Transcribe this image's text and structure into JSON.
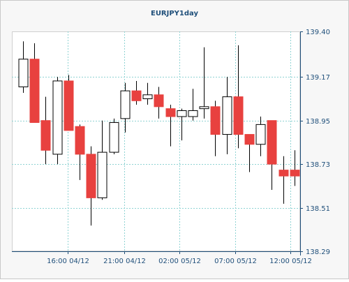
{
  "chart_data": {
    "type": "candlestick",
    "title": "EURJPY1day",
    "ylim": [
      138.29,
      139.4
    ],
    "y_ticks": [
      "139.40",
      "139.17",
      "138.95",
      "138.73",
      "138.51",
      "138.29"
    ],
    "x_ticks": [
      "16:00 04/12",
      "21:00 04/12",
      "02:00 05/12",
      "07:00 05/12",
      "12:00 05/12"
    ],
    "grid": true,
    "colors": {
      "up": "#ffffff",
      "down": "#e8413f",
      "axis": "#1f4f7a",
      "grid": "#8fd3d3",
      "frame": "#c8c8c8",
      "panel": "#f7f7f7"
    },
    "candles": [
      {
        "o": 139.12,
        "h": 139.35,
        "l": 139.09,
        "c": 139.26
      },
      {
        "o": 139.26,
        "h": 139.34,
        "l": 138.94,
        "c": 138.94
      },
      {
        "o": 138.95,
        "h": 139.07,
        "l": 138.73,
        "c": 138.8
      },
      {
        "o": 138.78,
        "h": 139.17,
        "l": 138.73,
        "c": 139.15
      },
      {
        "o": 139.15,
        "h": 139.18,
        "l": 138.9,
        "c": 138.9
      },
      {
        "o": 138.92,
        "h": 138.93,
        "l": 138.65,
        "c": 138.78
      },
      {
        "o": 138.78,
        "h": 138.82,
        "l": 138.42,
        "c": 138.56
      },
      {
        "o": 138.56,
        "h": 138.95,
        "l": 138.55,
        "c": 138.79
      },
      {
        "o": 138.79,
        "h": 138.96,
        "l": 138.78,
        "c": 138.94
      },
      {
        "o": 138.96,
        "h": 139.14,
        "l": 138.89,
        "c": 139.1
      },
      {
        "o": 139.1,
        "h": 139.15,
        "l": 139.03,
        "c": 139.05
      },
      {
        "o": 139.06,
        "h": 139.14,
        "l": 139.03,
        "c": 139.08
      },
      {
        "o": 139.08,
        "h": 139.12,
        "l": 138.96,
        "c": 139.02
      },
      {
        "o": 139.01,
        "h": 139.03,
        "l": 138.82,
        "c": 138.97
      },
      {
        "o": 138.97,
        "h": 139.01,
        "l": 138.85,
        "c": 139.0
      },
      {
        "o": 138.97,
        "h": 139.11,
        "l": 138.95,
        "c": 139.0
      },
      {
        "o": 139.01,
        "h": 139.32,
        "l": 138.96,
        "c": 139.02
      },
      {
        "o": 139.02,
        "h": 139.05,
        "l": 138.77,
        "c": 138.88
      },
      {
        "o": 138.88,
        "h": 139.17,
        "l": 138.78,
        "c": 139.07
      },
      {
        "o": 139.07,
        "h": 139.33,
        "l": 138.81,
        "c": 138.88
      },
      {
        "o": 138.88,
        "h": 138.88,
        "l": 138.69,
        "c": 138.83
      },
      {
        "o": 138.83,
        "h": 138.97,
        "l": 138.77,
        "c": 138.93
      },
      {
        "o": 138.95,
        "h": 138.95,
        "l": 138.6,
        "c": 138.73
      },
      {
        "o": 138.7,
        "h": 138.77,
        "l": 138.53,
        "c": 138.67
      },
      {
        "o": 138.7,
        "h": 138.8,
        "l": 138.62,
        "c": 138.67
      }
    ]
  }
}
